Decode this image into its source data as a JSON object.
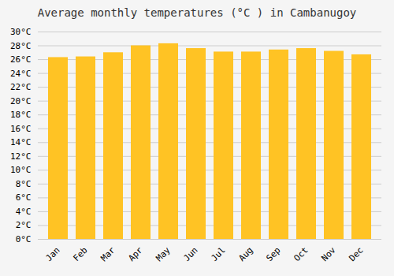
{
  "chart_data": {
    "type": "bar",
    "title": "Average monthly temperatures (°C ) in Cambanugoy",
    "categories": [
      "Jan",
      "Feb",
      "Mar",
      "Apr",
      "May",
      "Jun",
      "Jul",
      "Aug",
      "Sep",
      "Oct",
      "Nov",
      "Dec"
    ],
    "values": [
      26.3,
      26.4,
      27.0,
      28.0,
      28.3,
      27.6,
      27.1,
      27.1,
      27.4,
      27.6,
      27.2,
      26.7
    ],
    "color": "#FFC324",
    "ylim": [
      0,
      30
    ],
    "yticks": [
      {
        "value": 0,
        "label": "0°C"
      },
      {
        "value": 2,
        "label": "2°C"
      },
      {
        "value": 4,
        "label": "4°C"
      },
      {
        "value": 6,
        "label": "6°C"
      },
      {
        "value": 8,
        "label": "8°C"
      },
      {
        "value": 10,
        "label": "10°C"
      },
      {
        "value": 12,
        "label": "12°C"
      },
      {
        "value": 14,
        "label": "14°C"
      },
      {
        "value": 16,
        "label": "16°C"
      },
      {
        "value": 18,
        "label": "18°C"
      },
      {
        "value": 20,
        "label": "20°C"
      },
      {
        "value": 22,
        "label": "22°C"
      },
      {
        "value": 24,
        "label": "24°C"
      },
      {
        "value": 26,
        "label": "26°C"
      },
      {
        "value": 28,
        "label": "28°C"
      },
      {
        "value": 30,
        "label": "30°C"
      }
    ],
    "grid": true
  }
}
